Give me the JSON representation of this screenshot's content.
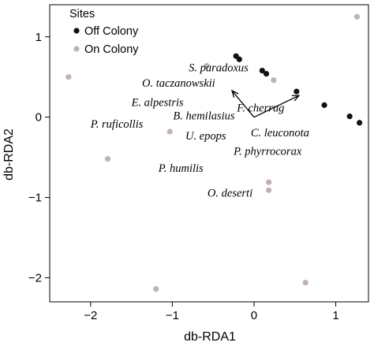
{
  "chart_data": {
    "type": "scatter",
    "title": "",
    "xlabel": "db-RDA1",
    "ylabel": "db-RDA2",
    "xlim": [
      -2.5,
      1.4
    ],
    "ylim": [
      -2.3,
      1.4
    ],
    "xticks": [
      -2,
      -1,
      0,
      1
    ],
    "yticks": [
      -2,
      -1,
      0,
      1
    ],
    "grid": false,
    "legend": {
      "title": "Sites",
      "position": "top-left",
      "entries": [
        {
          "label": "Off Colony",
          "color": "#111111"
        },
        {
          "label": "On Colony",
          "color": "#bfb3ae"
        }
      ]
    },
    "series": [
      {
        "name": "Off Colony",
        "color": "#111111",
        "points": [
          {
            "x": -0.22,
            "y": 0.76
          },
          {
            "x": -0.18,
            "y": 0.72
          },
          {
            "x": 0.1,
            "y": 0.58
          },
          {
            "x": 0.15,
            "y": 0.54
          },
          {
            "x": 0.52,
            "y": 0.32
          },
          {
            "x": 0.86,
            "y": 0.15
          },
          {
            "x": 1.17,
            "y": 0.01
          },
          {
            "x": 1.29,
            "y": -0.07
          }
        ]
      },
      {
        "name": "On Colony",
        "color": "#bfb3ae",
        "points": [
          {
            "x": 1.26,
            "y": 1.25
          },
          {
            "x": -2.27,
            "y": 0.5
          },
          {
            "x": -0.58,
            "y": 0.64
          },
          {
            "x": 0.24,
            "y": 0.46
          },
          {
            "x": -1.03,
            "y": -0.18
          },
          {
            "x": -1.79,
            "y": -0.52
          },
          {
            "x": 0.18,
            "y": -0.81
          },
          {
            "x": 0.18,
            "y": -0.91
          },
          {
            "x": 0.63,
            "y": -2.06
          },
          {
            "x": -1.2,
            "y": -2.14
          }
        ]
      }
    ],
    "vectors": [
      {
        "x": -0.27,
        "y": 0.33
      },
      {
        "x": 0.55,
        "y": 0.27
      }
    ],
    "species_labels": [
      {
        "text": "S. paradoxus",
        "x": -0.8,
        "y": 0.57
      },
      {
        "text": "O. taczanowskii",
        "x": -1.37,
        "y": 0.38
      },
      {
        "text": "E. alpestris",
        "x": -1.5,
        "y": 0.14
      },
      {
        "text": "F. cherrug",
        "x": -0.21,
        "y": 0.07
      },
      {
        "text": "B. hemilasius",
        "x": -0.99,
        "y": -0.03
      },
      {
        "text": "P. ruficollis",
        "x": -2.0,
        "y": -0.13
      },
      {
        "text": "C. leuconota",
        "x": -0.04,
        "y": -0.24
      },
      {
        "text": "U. epops",
        "x": -0.84,
        "y": -0.28
      },
      {
        "text": "P. phyrrocorax",
        "x": -0.25,
        "y": -0.47
      },
      {
        "text": "P. humilis",
        "x": -1.17,
        "y": -0.68
      },
      {
        "text": "O. deserti",
        "x": -0.57,
        "y": -0.99
      }
    ]
  }
}
